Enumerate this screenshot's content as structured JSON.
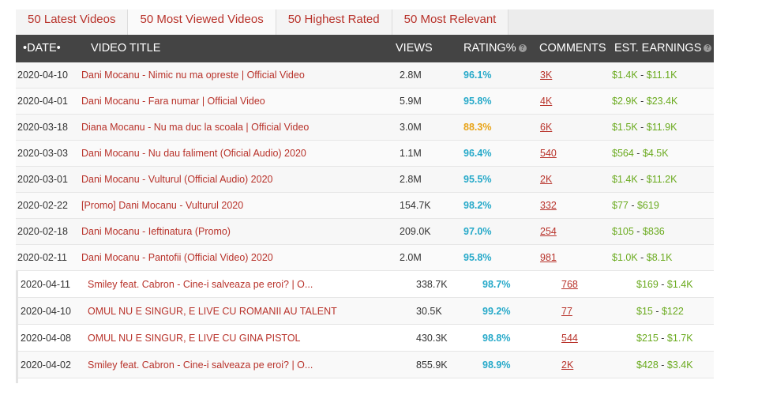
{
  "tabs": [
    {
      "label": "50 Latest Videos"
    },
    {
      "label": "50 Most Viewed Videos"
    },
    {
      "label": "50 Highest Rated"
    },
    {
      "label": "50 Most Relevant"
    }
  ],
  "columns": {
    "date": "•DATE•",
    "title": "VIDEO TITLE",
    "views": "VIEWS",
    "rating": "RATING%",
    "comments": "COMMENTS",
    "earnings": "EST. EARNINGS",
    "help_glyph": "?"
  },
  "rows": [
    {
      "date": "2020-04-10",
      "title": "Dani Mocanu - Nimic nu ma opreste | Official Video",
      "views": "2.8M",
      "rating": "96.1%",
      "comments": "3K",
      "earn_low": "$1.4K",
      "earn_high": "$11.1K"
    },
    {
      "date": "2020-04-01",
      "title": "Dani Mocanu - Fara numar | Official Video",
      "views": "5.9M",
      "rating": "95.8%",
      "comments": "4K",
      "earn_low": "$2.9K",
      "earn_high": "$23.4K"
    },
    {
      "date": "2020-03-18",
      "title": "Diana Mocanu - Nu ma duc la scoala | Official Video",
      "views": "3.0M",
      "rating": "88.3%",
      "comments": "6K",
      "earn_low": "$1.5K",
      "earn_high": "$11.9K"
    },
    {
      "date": "2020-03-03",
      "title": "Dani Mocanu - Nu dau faliment (Oficial Audio) 2020",
      "views": "1.1M",
      "rating": "96.4%",
      "comments": "540",
      "earn_low": "$564",
      "earn_high": "$4.5K"
    },
    {
      "date": "2020-03-01",
      "title": "Dani Mocanu - Vulturul (Official Audio) 2020",
      "views": "2.8M",
      "rating": "95.5%",
      "comments": "2K",
      "earn_low": "$1.4K",
      "earn_high": "$11.2K"
    },
    {
      "date": "2020-02-22",
      "title": "[Promo] Dani Mocanu - Vulturul 2020",
      "views": "154.7K",
      "rating": "98.2%",
      "comments": "332",
      "earn_low": "$77",
      "earn_high": "$619"
    },
    {
      "date": "2020-02-18",
      "title": "Dani Mocanu - Ieftinatura (Promo)",
      "views": "209.0K",
      "rating": "97.0%",
      "comments": "254",
      "earn_low": "$105",
      "earn_high": "$836"
    },
    {
      "date": "2020-02-11",
      "title": "Dani Mocanu - Pantofii (Official Video) 2020",
      "views": "2.0M",
      "rating": "95.8%",
      "comments": "981",
      "earn_low": "$1.0K",
      "earn_high": "$8.1K"
    }
  ],
  "rows2": [
    {
      "date": "2020-04-11",
      "title": "Smiley feat. Cabron - Cine-i salveaza pe eroi? | O...",
      "views": "338.7K",
      "rating": "98.7%",
      "comments": "768",
      "earn_low": "$169",
      "earn_high": "$1.4K"
    },
    {
      "date": "2020-04-10",
      "title": "OMUL NU E SINGUR, E LIVE CU ROMANII AU TALENT",
      "views": "30.5K",
      "rating": "99.2%",
      "comments": "77",
      "earn_low": "$15",
      "earn_high": "$122"
    },
    {
      "date": "2020-04-08",
      "title": "OMUL NU E SINGUR, E LIVE CU GINA PISTOL",
      "views": "430.3K",
      "rating": "98.8%",
      "comments": "544",
      "earn_low": "$215",
      "earn_high": "$1.7K"
    },
    {
      "date": "2020-04-02",
      "title": "Smiley feat. Cabron - Cine-i salveaza pe eroi? | O...",
      "views": "855.9K",
      "rating": "98.9%",
      "comments": "2K",
      "earn_low": "$428",
      "earn_high": "$3.4K"
    }
  ],
  "earn_separator": " - ",
  "colors": {
    "accent": "#b8322a",
    "header_bg": "#444444",
    "rating_good": "#26a9c9",
    "rating_warn": "#e8a317",
    "earnings": "#6aaa1e"
  }
}
